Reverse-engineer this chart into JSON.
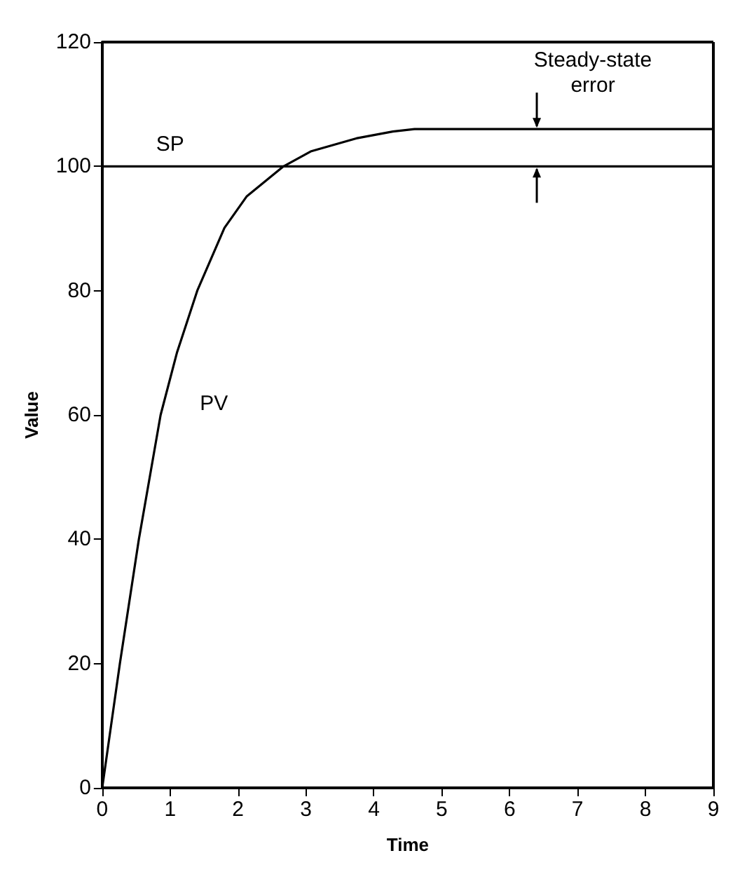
{
  "chart_data": {
    "type": "line",
    "xlabel": "Time",
    "ylabel": "Value",
    "x": [
      0,
      0.26,
      0.54,
      0.86,
      1.1,
      1.4,
      1.8,
      2.13,
      2.67,
      3.07,
      3.74,
      4.28,
      4.6,
      9
    ],
    "series": [
      {
        "color": "#000000",
        "x": [
          0,
          9
        ],
        "values": [
          100,
          100
        ]
      },
      {
        "color": "#000000",
        "values": [
          0,
          20,
          40,
          60,
          70,
          80,
          90.1,
          95.2,
          100,
          102.4,
          104.5,
          105.6,
          106,
          106
        ]
      }
    ],
    "annotations": [
      {
        "text": "SP",
        "x": 1,
        "y": 100
      },
      {
        "text": "PV",
        "x": 0.86,
        "y": 60
      },
      {
        "text": "Steady-state error",
        "x": 6.4,
        "y": 106
      }
    ],
    "xlim": [
      0,
      9
    ],
    "xticks": [
      0,
      1,
      2,
      3,
      4,
      5,
      6,
      7,
      8,
      9
    ],
    "ylim": [
      0,
      120
    ],
    "yticks": [
      0,
      20,
      40,
      60,
      80,
      100,
      120
    ],
    "grid": false,
    "marker": "none",
    "line_style": "solid"
  }
}
